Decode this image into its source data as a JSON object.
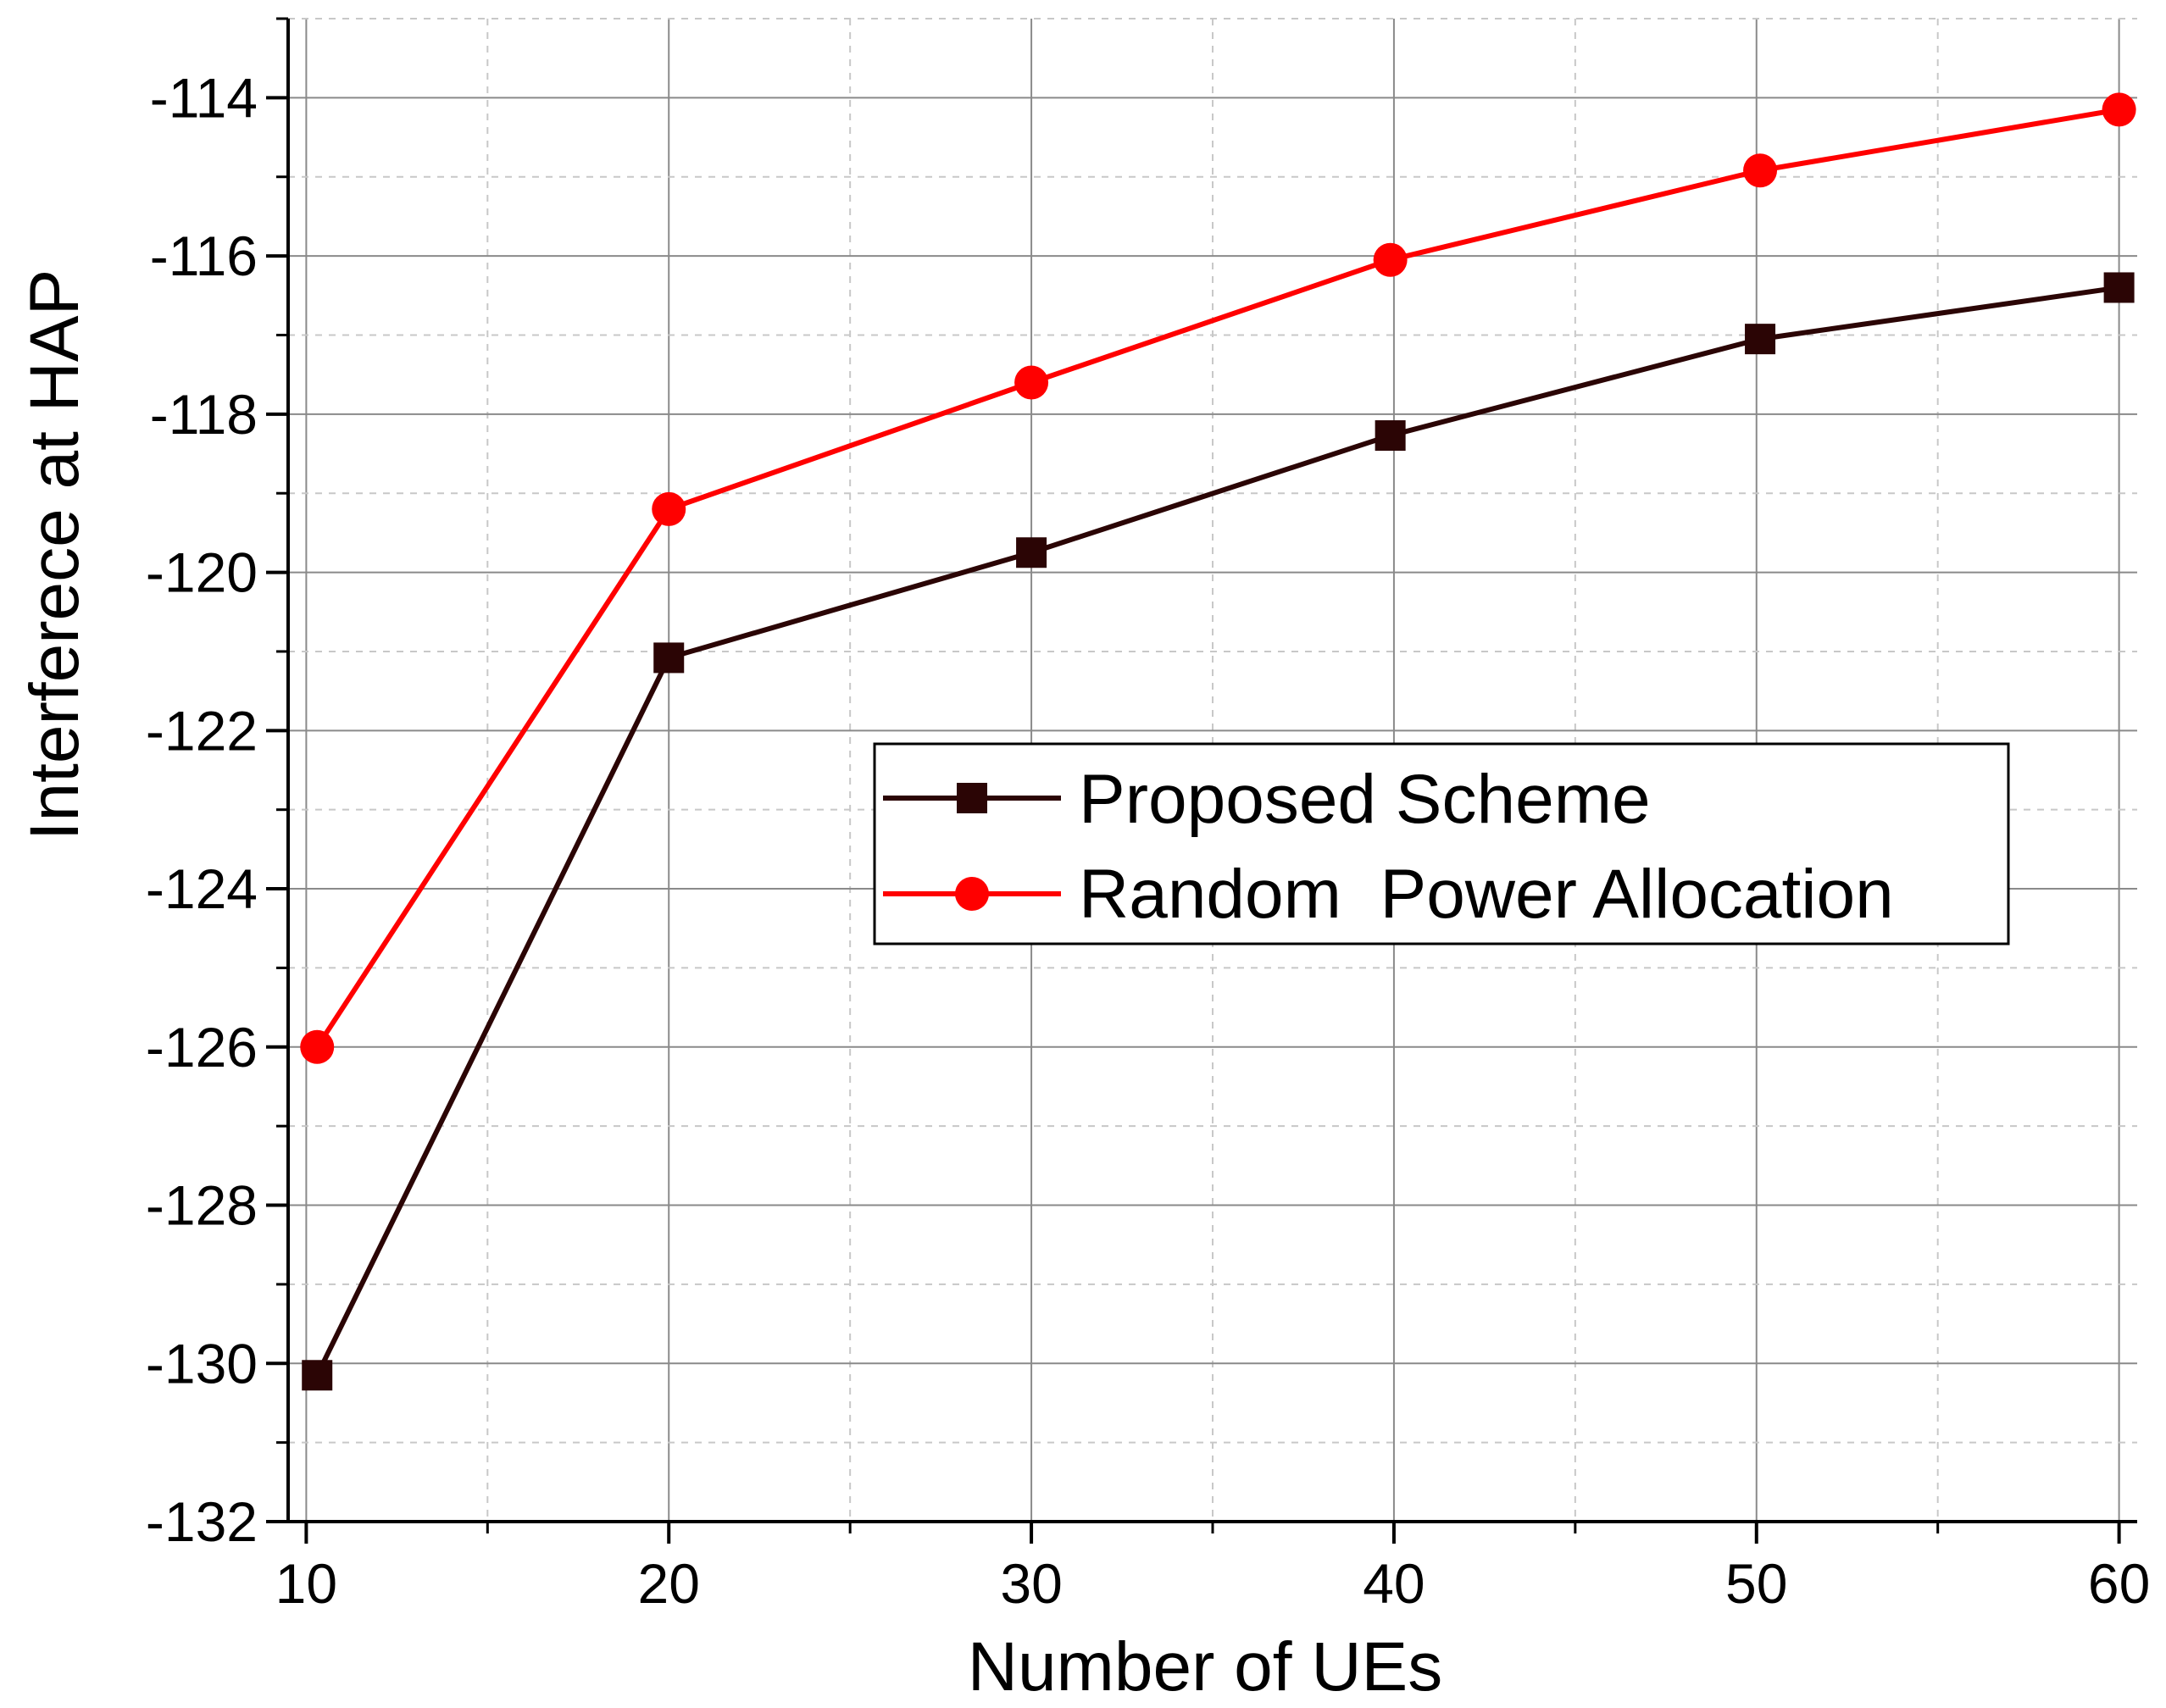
{
  "chart_data": {
    "type": "line",
    "title": "",
    "xlabel": "Number of UEs",
    "ylabel": "Interferece at HAP",
    "x": [
      10,
      20,
      30,
      40,
      50,
      60
    ],
    "xlim": [
      9.5,
      60.5
    ],
    "ylim": [
      -132,
      -113
    ],
    "x_ticks": [
      "10",
      "20",
      "30",
      "40",
      "50",
      "60"
    ],
    "y_ticks": [
      "-114",
      "-116",
      "-118",
      "-120",
      "-122",
      "-124",
      "-126",
      "-128",
      "-130",
      "-132"
    ],
    "grid": true,
    "legend_position": "center-right",
    "series": [
      {
        "name": "Proposed Scheme",
        "marker": "square",
        "color": "#2b0505",
        "x": [
          10.3,
          20.0,
          30.0,
          39.9,
          50.1,
          60.0
        ],
        "values": [
          -130.15,
          -121.08,
          -119.75,
          -118.27,
          -117.05,
          -116.4
        ]
      },
      {
        "name": "Random  Power Allocation",
        "marker": "circle",
        "color": "#ff0000",
        "x": [
          10.3,
          20.0,
          30.0,
          39.9,
          50.1,
          60.0
        ],
        "values": [
          -126.0,
          -119.2,
          -117.6,
          -116.05,
          -114.92,
          -114.15
        ]
      }
    ]
  }
}
